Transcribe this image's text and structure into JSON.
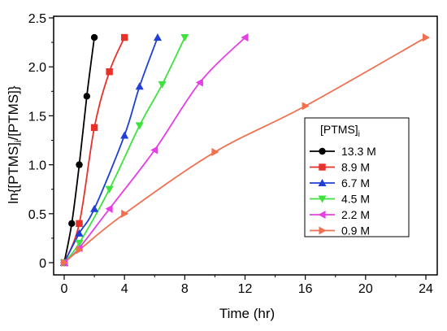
{
  "chart_data": {
    "type": "line",
    "title": "",
    "xlabel": "Time (hr)",
    "ylabel_parts": [
      "ln{[PTMS]",
      "i",
      "/[PTMS]}"
    ],
    "xlim": [
      0,
      24
    ],
    "ylim": [
      0,
      2.5
    ],
    "xticks": [
      0,
      4,
      8,
      12,
      16,
      20,
      24
    ],
    "yticks": [
      0,
      0.5,
      1.0,
      1.5,
      2.0,
      2.5
    ],
    "ytick_labels": [
      "0",
      "0.5",
      "1.0",
      "1.5",
      "2.0",
      "2.5"
    ],
    "grid": false,
    "legend": {
      "placement": "right-center",
      "title_main": "[PTMS]",
      "title_sub": "i"
    },
    "series": [
      {
        "name": "13.3 M",
        "color": "#000000",
        "marker": "circle",
        "x": [
          0,
          0.5,
          1.0,
          1.5,
          2.0
        ],
        "y": [
          0,
          0.4,
          1.0,
          1.7,
          2.3
        ]
      },
      {
        "name": "8.9 M",
        "color": "#e8312a",
        "marker": "square",
        "x": [
          0,
          1.0,
          2.0,
          3.0,
          4.0
        ],
        "y": [
          0,
          0.4,
          1.38,
          1.95,
          2.3
        ]
      },
      {
        "name": "6.7 M",
        "color": "#1f3fd6",
        "marker": "triangle-up",
        "x": [
          0,
          1.0,
          2.0,
          4.0,
          5.0,
          6.2
        ],
        "y": [
          0,
          0.3,
          0.55,
          1.3,
          1.8,
          2.3
        ]
      },
      {
        "name": "4.5 M",
        "color": "#3ee23e",
        "marker": "triangle-down",
        "x": [
          0,
          1.0,
          3.0,
          5.0,
          6.5,
          8.0
        ],
        "y": [
          0,
          0.2,
          0.75,
          1.4,
          1.82,
          2.3
        ]
      },
      {
        "name": "2.2 M",
        "color": "#e53fe3",
        "marker": "triangle-left",
        "x": [
          0,
          1.0,
          3.0,
          6.0,
          9.0,
          12.0
        ],
        "y": [
          0,
          0.15,
          0.55,
          1.15,
          1.84,
          2.3
        ]
      },
      {
        "name": "0.9 M",
        "color": "#f07050",
        "marker": "triangle-right",
        "x": [
          0,
          1.0,
          4.0,
          10.0,
          16.0,
          24.0
        ],
        "y": [
          0,
          0.13,
          0.5,
          1.13,
          1.6,
          2.3
        ]
      }
    ]
  }
}
